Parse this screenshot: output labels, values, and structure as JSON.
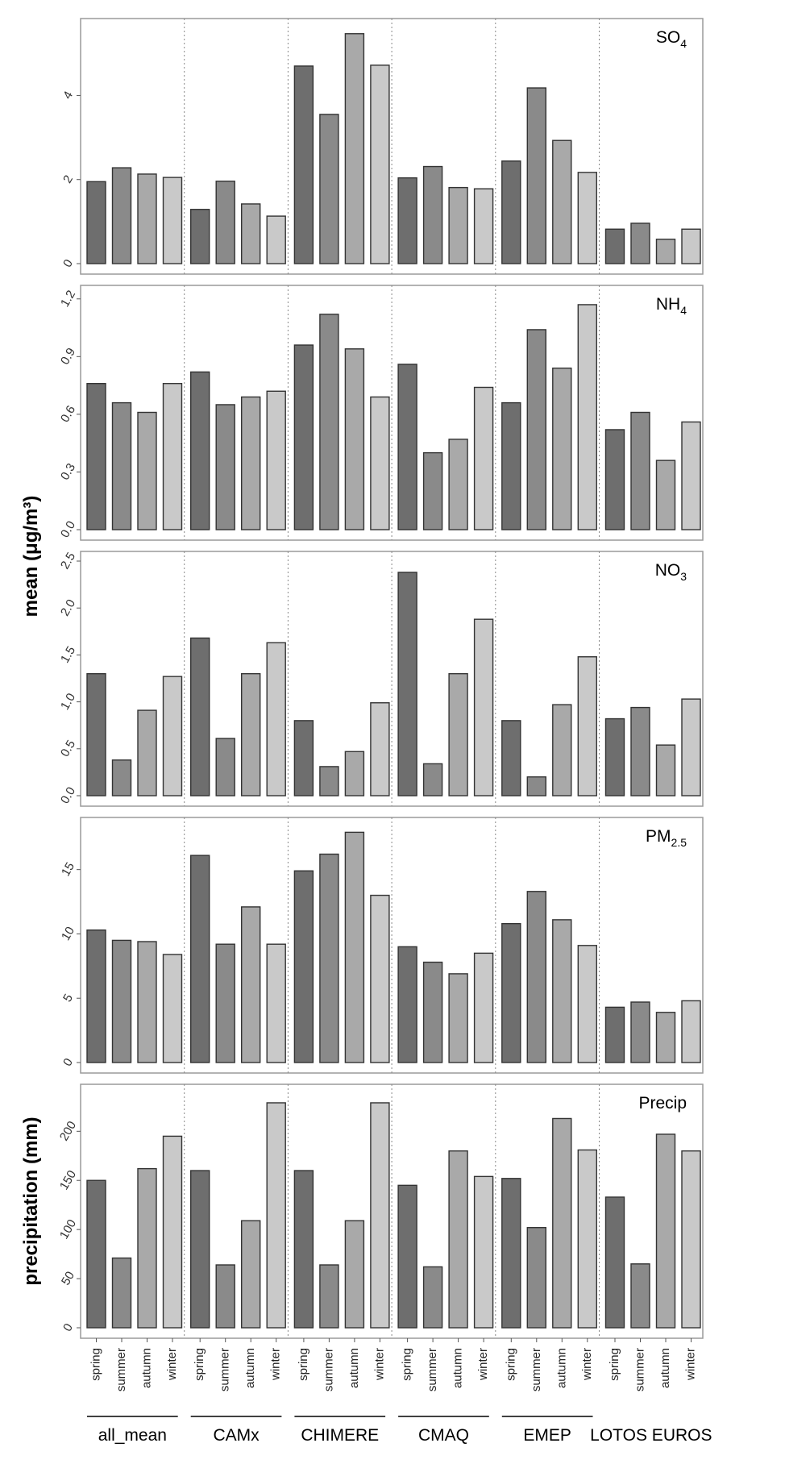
{
  "colors": {
    "spring": "#6e6e6e",
    "summer": "#8a8a8a",
    "autumn": "#a9a9a9",
    "winter": "#c9c9c9",
    "frame": "#9a9a9a",
    "bar_edge": "#333333",
    "separator": "#888888"
  },
  "groups": [
    "all_mean",
    "CAMx",
    "CHIMERE",
    "CMAQ",
    "EMEP",
    "LOTOS  EUROS"
  ],
  "seasons": [
    "spring",
    "summer",
    "autumn",
    "winter"
  ],
  "ylabel_mean": "mean (μg/m³)",
  "ylabel_precip": "precipitation (mm)",
  "chart_data": [
    {
      "type": "bar",
      "title": "SO",
      "title_sub": "4",
      "ylim": [
        0,
        5.6
      ],
      "yticks": [
        0,
        2,
        4
      ],
      "ytick_labels": [
        "0",
        "2",
        "4"
      ],
      "series": [
        {
          "name": "spring",
          "values": [
            1.95,
            1.29,
            4.7,
            2.04,
            2.44,
            0.82
          ]
        },
        {
          "name": "summer",
          "values": [
            2.28,
            1.96,
            3.55,
            2.31,
            4.18,
            0.96
          ]
        },
        {
          "name": "autumn",
          "values": [
            2.13,
            1.42,
            5.47,
            1.81,
            2.93,
            0.58
          ]
        },
        {
          "name": "winter",
          "values": [
            2.05,
            1.13,
            4.72,
            1.78,
            2.17,
            0.82
          ]
        }
      ]
    },
    {
      "type": "bar",
      "title": "NH",
      "title_sub": "4",
      "ylim": [
        0,
        1.22
      ],
      "yticks": [
        0,
        0.3,
        0.6,
        0.9,
        1.2
      ],
      "ytick_labels": [
        "0.0",
        "0.3",
        "0.6",
        "0.9",
        "1.2"
      ],
      "series": [
        {
          "name": "spring",
          "values": [
            0.76,
            0.82,
            0.96,
            0.86,
            0.66,
            0.52
          ]
        },
        {
          "name": "summer",
          "values": [
            0.66,
            0.65,
            1.12,
            0.4,
            1.04,
            0.61
          ]
        },
        {
          "name": "autumn",
          "values": [
            0.61,
            0.69,
            0.94,
            0.47,
            0.84,
            0.36
          ]
        },
        {
          "name": "winter",
          "values": [
            0.76,
            0.72,
            0.69,
            0.74,
            1.17,
            0.56
          ]
        }
      ]
    },
    {
      "type": "bar",
      "title": "NO",
      "title_sub": "3",
      "ylim": [
        0,
        2.5
      ],
      "yticks": [
        0,
        0.5,
        1.0,
        1.5,
        2.0,
        2.5
      ],
      "ytick_labels": [
        "0.0",
        "0.5",
        "1.0",
        "1.5",
        "2.0",
        "2.5"
      ],
      "series": [
        {
          "name": "spring",
          "values": [
            1.3,
            1.68,
            0.8,
            2.38,
            0.8,
            0.82
          ]
        },
        {
          "name": "summer",
          "values": [
            0.38,
            0.61,
            0.31,
            0.34,
            0.2,
            0.94
          ]
        },
        {
          "name": "autumn",
          "values": [
            0.91,
            1.3,
            0.47,
            1.3,
            0.97,
            0.54
          ]
        },
        {
          "name": "winter",
          "values": [
            1.27,
            1.63,
            0.99,
            1.88,
            1.48,
            1.03
          ]
        }
      ]
    },
    {
      "type": "bar",
      "title": "PM",
      "title_sub": "2.5",
      "ylim": [
        0,
        18.3
      ],
      "yticks": [
        0,
        5,
        10,
        15
      ],
      "ytick_labels": [
        "0",
        "5",
        "10",
        "15"
      ],
      "series": [
        {
          "name": "spring",
          "values": [
            10.3,
            16.1,
            14.9,
            9.0,
            10.8,
            4.3
          ]
        },
        {
          "name": "summer",
          "values": [
            9.5,
            9.2,
            16.2,
            7.8,
            13.3,
            4.7
          ]
        },
        {
          "name": "autumn",
          "values": [
            9.4,
            12.1,
            17.9,
            6.9,
            11.1,
            3.9
          ]
        },
        {
          "name": "winter",
          "values": [
            8.4,
            9.2,
            13.0,
            8.5,
            9.1,
            4.8
          ]
        }
      ]
    },
    {
      "type": "bar",
      "title": "Precip",
      "title_sub": "",
      "ylim": [
        0,
        238
      ],
      "yticks": [
        0,
        50,
        100,
        150,
        200
      ],
      "ytick_labels": [
        "0",
        "50",
        "100",
        "150",
        "200"
      ],
      "series": [
        {
          "name": "spring",
          "values": [
            150,
            160,
            160,
            145,
            152,
            133
          ]
        },
        {
          "name": "summer",
          "values": [
            71,
            64,
            64,
            62,
            102,
            65
          ]
        },
        {
          "name": "autumn",
          "values": [
            162,
            109,
            109,
            180,
            213,
            197
          ]
        },
        {
          "name": "winter",
          "values": [
            195,
            229,
            229,
            154,
            181,
            180
          ]
        }
      ]
    }
  ]
}
